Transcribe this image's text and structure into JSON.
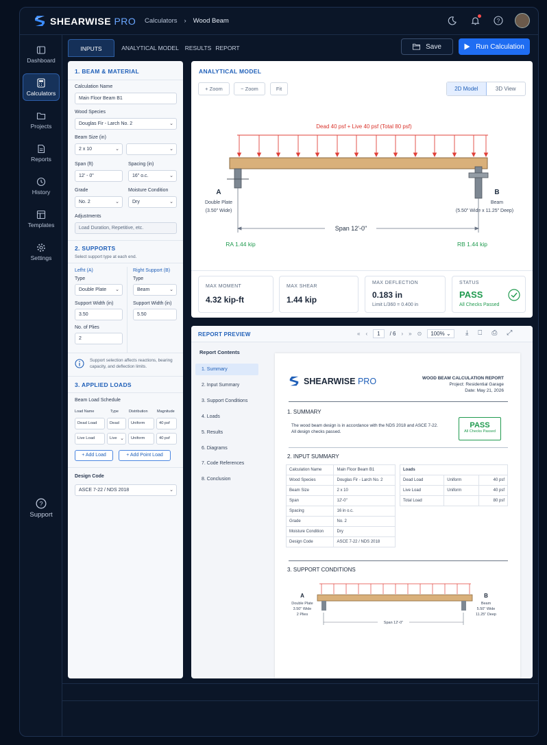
{
  "brand": {
    "name": "SHEARWISE",
    "suffix": "PRO"
  },
  "breadcrumb": {
    "parent": "Calculators",
    "current": "Wood Beam"
  },
  "sidebar": {
    "items": [
      {
        "label": "Dashboard",
        "icon": "dashboard-icon"
      },
      {
        "label": "Calculators",
        "icon": "calculator-icon",
        "active": true
      },
      {
        "label": "Projects",
        "icon": "folder-icon"
      },
      {
        "label": "Reports",
        "icon": "report-icon"
      },
      {
        "label": "History",
        "icon": "history-icon"
      },
      {
        "label": "Templates",
        "icon": "template-icon"
      },
      {
        "label": "Settings",
        "icon": "gear-icon"
      }
    ],
    "support": "Support"
  },
  "tabs": [
    "INPUTS",
    "ANALYTICAL MODEL",
    "RESULTS",
    "REPORT"
  ],
  "actions": {
    "save": "Save",
    "run": "Run Calculation"
  },
  "inputs": {
    "sec1": "1.  BEAM & MATERIAL",
    "calc_name_label": "Calculation Name",
    "calc_name": "Main Floor Beam B1",
    "species_label": "Wood Species",
    "species": "Douglas Fir - Larch No. 2",
    "size_label": "Beam Size (in)",
    "size": "2 x 10",
    "size2": "",
    "span_label": "Span (ft)",
    "span": "12' - 0\"",
    "spacing_label": "Spacing (in)",
    "spacing": "16\" o.c.",
    "grade_label": "Grade",
    "grade": "No. 2",
    "moisture_label": "Moisture Condition",
    "moisture": "Dry",
    "adj_label": "Adjustments",
    "adj_placeholder": "Load Duration, Repetitive, etc.",
    "sec2": "2.  SUPPORTS",
    "sec2_hint": "Select support type at each end.",
    "left_label": "Lefht (A)",
    "right_label": "Right Support (B)",
    "type_label": "Type",
    "left_type": "Double Plate",
    "right_type": "Beam",
    "sw_label": "Support Width (in)",
    "left_sw": "3.50",
    "right_sw": "5.50",
    "plies_label": "No. of Plies",
    "plies": "2",
    "info": "Support selection affects reactions, bearing capacity, and deflection limits.",
    "sec3": "3.  APPLIED LOADS",
    "schedule": "Beam Load Schedule",
    "load_cols": [
      "Load Name",
      "Type",
      "Distribution",
      "Magnitude"
    ],
    "loads": [
      {
        "name": "Dead Load",
        "type": "Dead",
        "dist": "Uniform",
        "mag": "40 psf"
      },
      {
        "name": "Live Load",
        "type": "Live",
        "dist": "Uniform",
        "mag": "40 psf"
      }
    ],
    "add_load": "+  Add Load",
    "add_point": "+  Add Point Load",
    "code_label": "Design Code",
    "code": "ASCE 7-22 / NDS 2018"
  },
  "model": {
    "title": "ANALYTICAL MODEL",
    "zoom_in": "+  Zoom",
    "zoom_out": "−  Zoom",
    "fit": "Fit",
    "view2d": "2D Model",
    "view3d": "3D View",
    "load_label": "Dead 40 psf + Live 40 psf (Total 80 psf)",
    "a": "A",
    "a_type": "Double Plate",
    "a_width": "(3.50\" Wide)",
    "b": "B",
    "b_type": "Beam",
    "b_size": "(5.50\" Wide x 11.25\" Deep)",
    "span": "Span 12'-0\"",
    "ra": "RA 1.44 kip",
    "rb": "RB 1.44 kip"
  },
  "results": {
    "moment_t": "MAX MOMENT",
    "moment": "4.32 kip-ft",
    "shear_t": "MAX SHEAR",
    "shear": "1.44 kip",
    "defl_t": "MAX DEFLECTION",
    "defl": "0.183 in",
    "defl_limit": "Limit L/360 = 0.400 in",
    "status_t": "STATUS",
    "status": "PASS",
    "status_sub": "All Checks Passed",
    "colors": {
      "pass": "#1f9a4e"
    }
  },
  "report": {
    "title": "REPORT PREVIEW",
    "page": "1",
    "pages": "/ 6",
    "zoom": "100%",
    "contents": "Report Contents",
    "toc": [
      "1.  Summary",
      "2.  Input Summary",
      "3.  Support Conditions",
      "4.  Loads",
      "5.  Results",
      "6.  Diagrams",
      "7.  Code References",
      "8.  Conclusion"
    ],
    "doc_title": "WOOD BEAM CALCULATION REPORT",
    "project": "Project: Residential Garage",
    "date": "Date: May 21, 2026",
    "s1": "1.   SUMMARY",
    "s1_text": "The wood beam design is in accordance with the NDS 2018 and ASCE 7-22.",
    "s1_text2": "All design checks passed.",
    "pass": "PASS",
    "pass_sub": "All Checks Passed",
    "s2": "2.   INPUT SUMMARY",
    "inputs_table": [
      [
        "Calculation Name",
        "Main Floor Beam B1"
      ],
      [
        "Wood Species",
        "Douglas Fir - Larch No. 2"
      ],
      [
        "Beam Size",
        "2 x 10"
      ],
      [
        "Span",
        "12'-0\""
      ],
      [
        "Spacing",
        "16 in o.c."
      ],
      [
        "Grade",
        "No. 2"
      ],
      [
        "Moisture Condition",
        "Dry"
      ],
      [
        "Design Code",
        "ASCE 7-22 / NDS 2018"
      ]
    ],
    "loads_head": "Loads",
    "loads_table": [
      [
        "Dead Load",
        "Uniform",
        "40 psf"
      ],
      [
        "Live Load",
        "Uniform",
        "40 psf"
      ],
      [
        "Total Load",
        "",
        "80 psf"
      ]
    ],
    "s3": "3.   SUPPORT CONDITIONS",
    "ra": "A",
    "ra_l1": "Double Plate",
    "ra_l2": "3.50\" Wide",
    "ra_l3": "2 Plies",
    "rb": "B",
    "rb_l1": "Beam",
    "rb_l2": "5.50\" Wide",
    "rb_l3": "11.25\" Deep",
    "span": "Span 12'-0\""
  }
}
